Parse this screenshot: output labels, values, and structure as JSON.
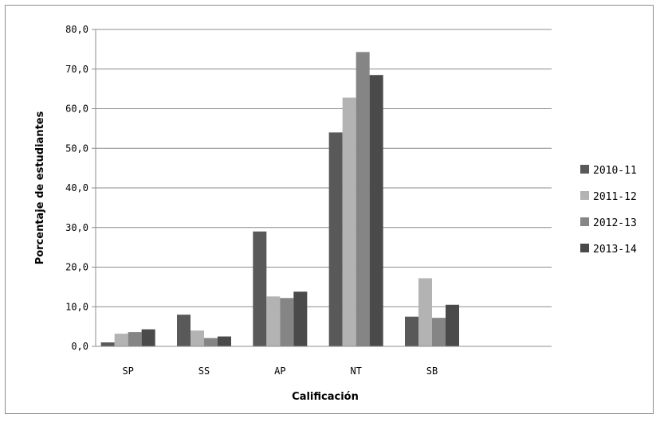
{
  "chart_data": {
    "type": "bar",
    "xlabel": "Calificación",
    "ylabel": "Porcentaje de estudiantes",
    "categories": [
      "SP",
      "SS",
      "AP",
      "NT",
      "SB"
    ],
    "ylim": [
      0,
      80
    ],
    "y_ticks": [
      "0,0",
      "10,0",
      "20,0",
      "30,0",
      "40,0",
      "50,0",
      "60,0",
      "70,0",
      "80,0"
    ],
    "grid": "horizontal",
    "legend_position": "right",
    "series": [
      {
        "name": "2010-11",
        "color": "#595959",
        "values": [
          1.0,
          8.0,
          29.0,
          54.0,
          7.5
        ]
      },
      {
        "name": "2011-12",
        "color": "#b3b3b3",
        "values": [
          3.2,
          4.0,
          12.6,
          62.8,
          17.2
        ]
      },
      {
        "name": "2012-13",
        "color": "#858585",
        "values": [
          3.6,
          2.1,
          12.2,
          74.3,
          7.2
        ]
      },
      {
        "name": "2013-14",
        "color": "#4a4a4a",
        "values": [
          4.3,
          2.5,
          13.8,
          68.5,
          10.5
        ]
      }
    ]
  }
}
